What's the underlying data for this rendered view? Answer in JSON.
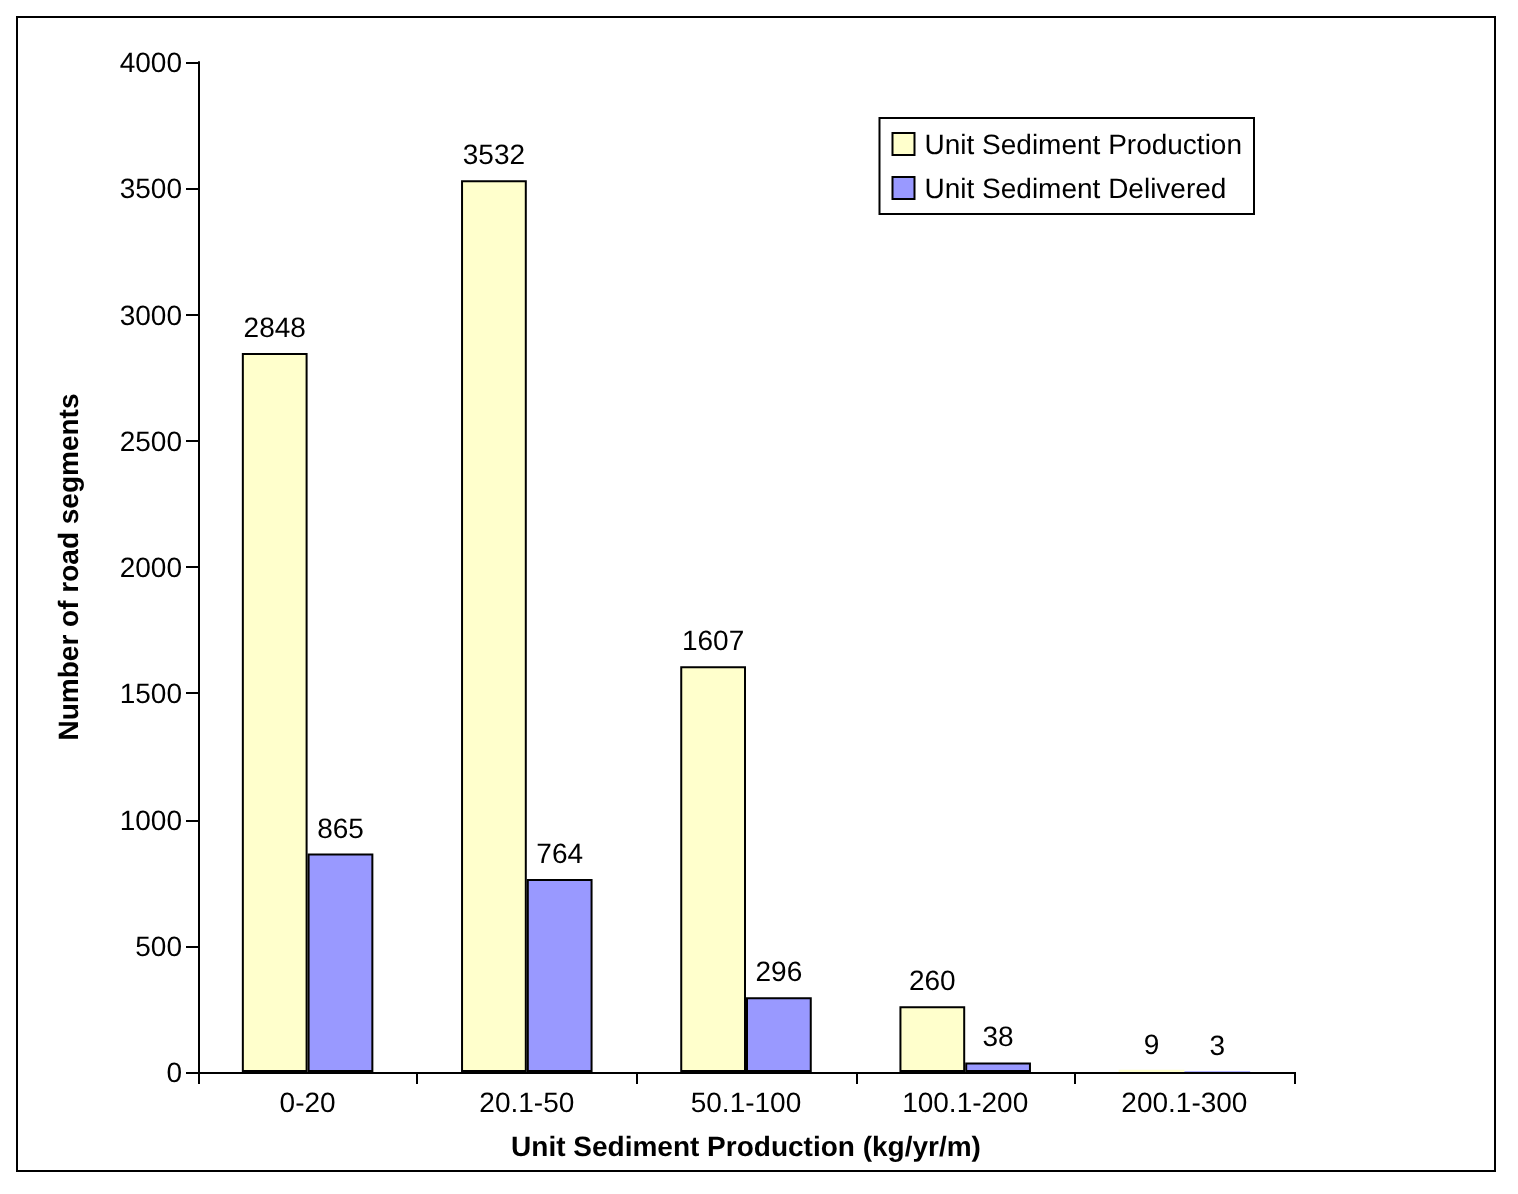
{
  "chart_data": {
    "type": "bar",
    "xlabel": "Unit Sediment Production (kg/yr/m)",
    "ylabel": "Number of road segments",
    "categories": [
      "0-20",
      "20.1-50",
      "50.1-100",
      "100.1-200",
      "200.1-300"
    ],
    "series": [
      {
        "name": "Unit Sediment Production",
        "color": "#ffffcc",
        "values": [
          2848,
          3532,
          1607,
          260,
          9
        ]
      },
      {
        "name": "Unit Sediment Delivered",
        "color": "#9999ff",
        "values": [
          865,
          764,
          296,
          38,
          3
        ]
      }
    ],
    "ylim": [
      0,
      4000
    ],
    "yticks": [
      0,
      500,
      1000,
      1500,
      2000,
      2500,
      3000,
      3500,
      4000
    ],
    "grid": false,
    "legend": "top right",
    "data_labels": true
  }
}
